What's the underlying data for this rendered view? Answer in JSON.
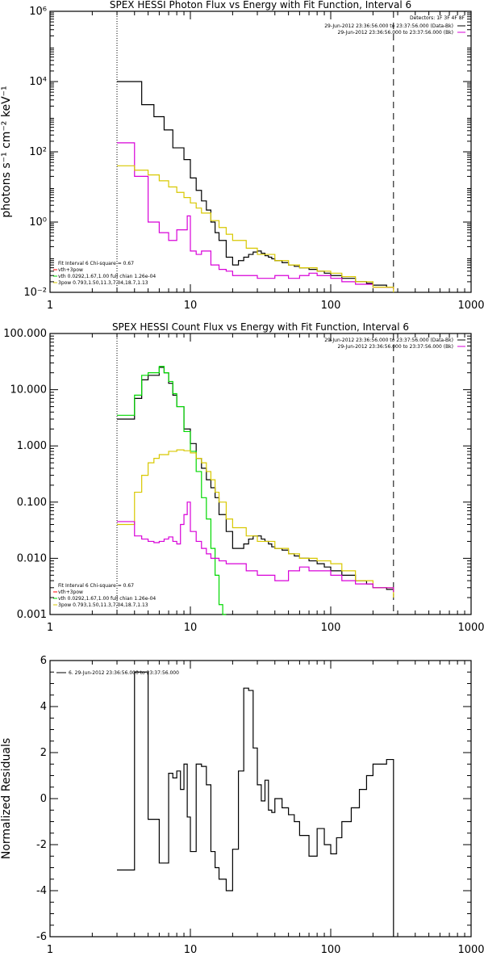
{
  "colors": {
    "black": "#000000",
    "red": "#ff0000",
    "green": "#00d800",
    "magenta": "#d800d8",
    "yellow": "#d8c800",
    "background": "#ffffff"
  },
  "chart_data": [
    {
      "type": "line",
      "title": "SPEX HESSI Photon Flux vs Energy with Fit Function, Interval 6",
      "xlabel": "",
      "ylabel": "photons s⁻¹ cm⁻² keV⁻¹",
      "xscale": "log",
      "yscale": "log",
      "xlim": [
        1,
        1000
      ],
      "ylim": [
        0.01,
        1000000
      ],
      "x_ticks": [
        1,
        10,
        100,
        1000
      ],
      "x_tick_labels": [
        "1",
        "10",
        "100",
        "1000"
      ],
      "y_ticks": [
        0.01,
        1,
        100,
        10000,
        1000000
      ],
      "y_tick_labels": [
        "10⁻²",
        "10⁰",
        "10²",
        "10⁴",
        "10⁶"
      ],
      "legend_position": "top-right",
      "vlines": [
        {
          "x": 3,
          "style": "dotted"
        },
        {
          "x": 280,
          "style": "dashed"
        }
      ],
      "detectors_header": "Detectors: 1F 3F 4F 8F",
      "top_legend": [
        "29-Jun-2012 23:36:56.000 to 23:37:56.000 (Data-Bk)",
        "29-Jun-2012 23:36:56.000 to 23:37:56.000 (Bk)"
      ],
      "bottom_legend": [
        "Fit Interval 6   Chi-square = 0.67",
        "vth+3pow",
        "vth 0.0292,1.67,1.00  full chian 1.26e-04",
        "3pow 0.793,1.50,11.3,7.04,18.7,1.13"
      ],
      "series": [
        {
          "name": "",
          "color": "black",
          "x": [
            3,
            3.3,
            3.6,
            4,
            4.5,
            5,
            5.5,
            6,
            6.5,
            7,
            7.5,
            8,
            9,
            10,
            11,
            12,
            13,
            14,
            15,
            16,
            18,
            20,
            22,
            24,
            26,
            28,
            30,
            32,
            34,
            36,
            38,
            40,
            45,
            50,
            55,
            60,
            70,
            80,
            90,
            100,
            120,
            150,
            180,
            200,
            250,
            280
          ],
          "y": [
            10000,
            10000,
            10000,
            10000,
            2200,
            2200,
            1000,
            1000,
            420,
            420,
            130,
            130,
            60,
            18,
            8,
            4,
            2.2,
            1,
            0.5,
            0.3,
            0.1,
            0.06,
            0.08,
            0.1,
            0.12,
            0.14,
            0.15,
            0.13,
            0.11,
            0.1,
            0.09,
            0.08,
            0.07,
            0.06,
            0.055,
            0.05,
            0.045,
            0.04,
            0.035,
            0.03,
            0.025,
            0.02,
            0.018,
            0.016,
            0.014,
            0.014
          ]
        },
        {
          "name": "",
          "color": "magenta",
          "x": [
            3,
            3.5,
            4,
            5,
            6,
            7,
            8,
            8.5,
            9,
            9.5,
            10,
            11,
            12,
            14,
            16,
            18,
            20,
            25,
            30,
            40,
            50,
            60,
            70,
            80,
            100,
            120,
            150,
            200,
            280
          ],
          "y": [
            180,
            180,
            20,
            1,
            0.5,
            0.3,
            0.6,
            0.6,
            0.6,
            1.5,
            0.15,
            0.12,
            0.15,
            0.06,
            0.045,
            0.04,
            0.03,
            0.03,
            0.025,
            0.03,
            0.025,
            0.03,
            0.035,
            0.03,
            0.025,
            0.02,
            0.017,
            0.014,
            0.012
          ]
        },
        {
          "name": "",
          "color": "yellow",
          "x": [
            3,
            3.5,
            4,
            5,
            6,
            7,
            8,
            9,
            10,
            11,
            12,
            14,
            16,
            18,
            20,
            25,
            30,
            40,
            50,
            60,
            80,
            100,
            120,
            150,
            200,
            280
          ],
          "y": [
            40,
            40,
            30,
            22,
            15,
            10,
            7,
            5,
            3.5,
            2.5,
            1.8,
            1.1,
            0.7,
            0.45,
            0.3,
            0.18,
            0.12,
            0.08,
            0.06,
            0.05,
            0.04,
            0.035,
            0.028,
            0.02,
            0.014,
            0.01
          ]
        }
      ]
    },
    {
      "type": "line",
      "title": "SPEX HESSI Count Flux vs Energy with Fit Function, Interval 6",
      "xlabel": "",
      "ylabel": "",
      "xscale": "log",
      "yscale": "log",
      "xlim": [
        1,
        1000
      ],
      "ylim": [
        0.001,
        100
      ],
      "x_ticks": [
        1,
        10,
        100,
        1000
      ],
      "x_tick_labels": [
        "1",
        "10",
        "100",
        "1000"
      ],
      "y_ticks": [
        0.001,
        0.01,
        0.1,
        1,
        10,
        100
      ],
      "y_tick_labels": [
        "0.001",
        "0.010",
        "0.100",
        "1.000",
        "10.000",
        "100.000"
      ],
      "legend_position": "top-right",
      "vlines": [
        {
          "x": 3,
          "style": "dotted"
        },
        {
          "x": 280,
          "style": "dashed"
        }
      ],
      "top_legend": [
        "29-Jun-2012 23:36:56.000 to 23:37:56.000 (Data-Bk)",
        "29-Jun-2012 23:36:56.000 to 23:37:56.000 (Bk)"
      ],
      "bottom_legend": [
        "Fit Interval 6   Chi-square = 0.67",
        "vth+3pow",
        "vth 0.0292,1.67,1.00  full chian 1.26e-04",
        "3pow 0.793,1.50,11.3,7.04,18.7,1.13"
      ],
      "series": [
        {
          "name": "",
          "color": "black",
          "x": [
            3,
            3.5,
            4,
            4.5,
            5,
            5.5,
            6,
            6.5,
            7,
            7.5,
            8,
            9,
            10,
            11,
            12,
            13,
            14,
            15,
            16,
            18,
            20,
            22,
            24,
            26,
            28,
            30,
            32,
            34,
            36,
            38,
            40,
            45,
            50,
            55,
            60,
            70,
            80,
            90,
            100,
            120,
            150,
            180,
            200,
            250,
            280
          ],
          "y": [
            3,
            3,
            7,
            15,
            18,
            18,
            25,
            20,
            13,
            8,
            5,
            2,
            1.1,
            0.6,
            0.4,
            0.25,
            0.18,
            0.12,
            0.06,
            0.03,
            0.015,
            0.015,
            0.018,
            0.022,
            0.025,
            0.025,
            0.022,
            0.02,
            0.018,
            0.016,
            0.015,
            0.014,
            0.012,
            0.011,
            0.01,
            0.009,
            0.008,
            0.007,
            0.006,
            0.005,
            0.004,
            0.0035,
            0.003,
            0.0028,
            0.0025
          ]
        },
        {
          "name": "",
          "color": "green",
          "x": [
            3,
            3.5,
            4,
            4.5,
            5,
            5.5,
            6,
            6.5,
            7,
            7.5,
            8,
            9,
            10,
            11,
            12,
            13,
            14,
            15,
            16,
            17,
            18
          ],
          "y": [
            3.5,
            3.5,
            8,
            18,
            20,
            20,
            26,
            20,
            14,
            8.5,
            5,
            1.8,
            0.8,
            0.35,
            0.12,
            0.05,
            0.015,
            0.005,
            0.0015,
            0.001,
            0.001
          ]
        },
        {
          "name": "",
          "color": "yellow",
          "x": [
            3,
            3.5,
            4,
            4.5,
            5,
            5.5,
            6,
            7,
            8,
            9,
            10,
            11,
            12,
            13,
            14,
            15,
            16,
            18,
            20,
            25,
            30,
            40,
            50,
            60,
            80,
            100,
            120,
            150,
            200,
            280
          ],
          "y": [
            0.04,
            0.04,
            0.15,
            0.3,
            0.5,
            0.6,
            0.7,
            0.8,
            0.85,
            0.82,
            0.75,
            0.6,
            0.5,
            0.35,
            0.25,
            0.15,
            0.1,
            0.05,
            0.035,
            0.025,
            0.02,
            0.015,
            0.012,
            0.01,
            0.009,
            0.008,
            0.006,
            0.004,
            0.003,
            0.002
          ]
        },
        {
          "name": "",
          "color": "magenta",
          "x": [
            3,
            3.5,
            4,
            4.5,
            5,
            5.5,
            6,
            6.5,
            7,
            7.5,
            8,
            8.5,
            9,
            9.5,
            10,
            11,
            12,
            13,
            14,
            16,
            18,
            20,
            25,
            30,
            40,
            50,
            60,
            70,
            80,
            100,
            120,
            150,
            200,
            280
          ],
          "y": [
            0.045,
            0.045,
            0.025,
            0.022,
            0.02,
            0.019,
            0.02,
            0.022,
            0.024,
            0.02,
            0.018,
            0.04,
            0.06,
            0.1,
            0.03,
            0.02,
            0.015,
            0.012,
            0.01,
            0.009,
            0.008,
            0.008,
            0.006,
            0.005,
            0.004,
            0.006,
            0.007,
            0.006,
            0.006,
            0.005,
            0.004,
            0.0035,
            0.003,
            0.0025
          ]
        }
      ]
    },
    {
      "type": "line",
      "title": "",
      "xlabel": "",
      "ylabel": "Normalized Residuals",
      "xscale": "log",
      "yscale": "linear",
      "xlim": [
        1,
        1000
      ],
      "ylim": [
        -6,
        6
      ],
      "x_ticks": [
        1,
        10,
        100,
        1000
      ],
      "x_tick_labels": [
        "1",
        "10",
        "100",
        "1000"
      ],
      "y_ticks": [
        -6,
        -4,
        -2,
        0,
        2,
        4,
        6
      ],
      "y_tick_labels": [
        "-6",
        "-4",
        "-2",
        "0",
        "2",
        "4",
        "6"
      ],
      "legend_text": "6. 29-Jun-2012 23:36:56.000 to 23:37:56.000",
      "series": [
        {
          "name": "",
          "color": "black",
          "x": [
            3,
            3.5,
            4,
            4.5,
            5,
            5.5,
            6,
            6.5,
            7,
            7.5,
            8,
            8.5,
            9,
            9.5,
            10,
            11,
            12,
            13,
            14,
            15,
            16,
            18,
            20,
            22,
            24,
            26,
            28,
            30,
            32,
            34,
            36,
            38,
            40,
            45,
            50,
            55,
            60,
            70,
            80,
            90,
            100,
            110,
            120,
            140,
            160,
            180,
            200,
            250,
            280
          ],
          "y": [
            -3.1,
            -3.1,
            5.5,
            5.5,
            -0.9,
            -0.9,
            -2.8,
            -2.8,
            1.1,
            0.9,
            1.2,
            0.4,
            1.5,
            -0.8,
            -2.3,
            1.5,
            1.4,
            0.6,
            -2.3,
            -3.0,
            -3.5,
            -4.0,
            -2.2,
            1.2,
            4.8,
            4.7,
            2.2,
            0.6,
            -0.1,
            0.8,
            -0.5,
            -0.6,
            0.0,
            -0.4,
            -0.7,
            -1.0,
            -1.6,
            -2.5,
            -1.3,
            -2.0,
            -2.4,
            -1.7,
            -1.0,
            -0.4,
            0.4,
            1.0,
            1.5,
            1.7,
            -6
          ]
        }
      ]
    }
  ]
}
